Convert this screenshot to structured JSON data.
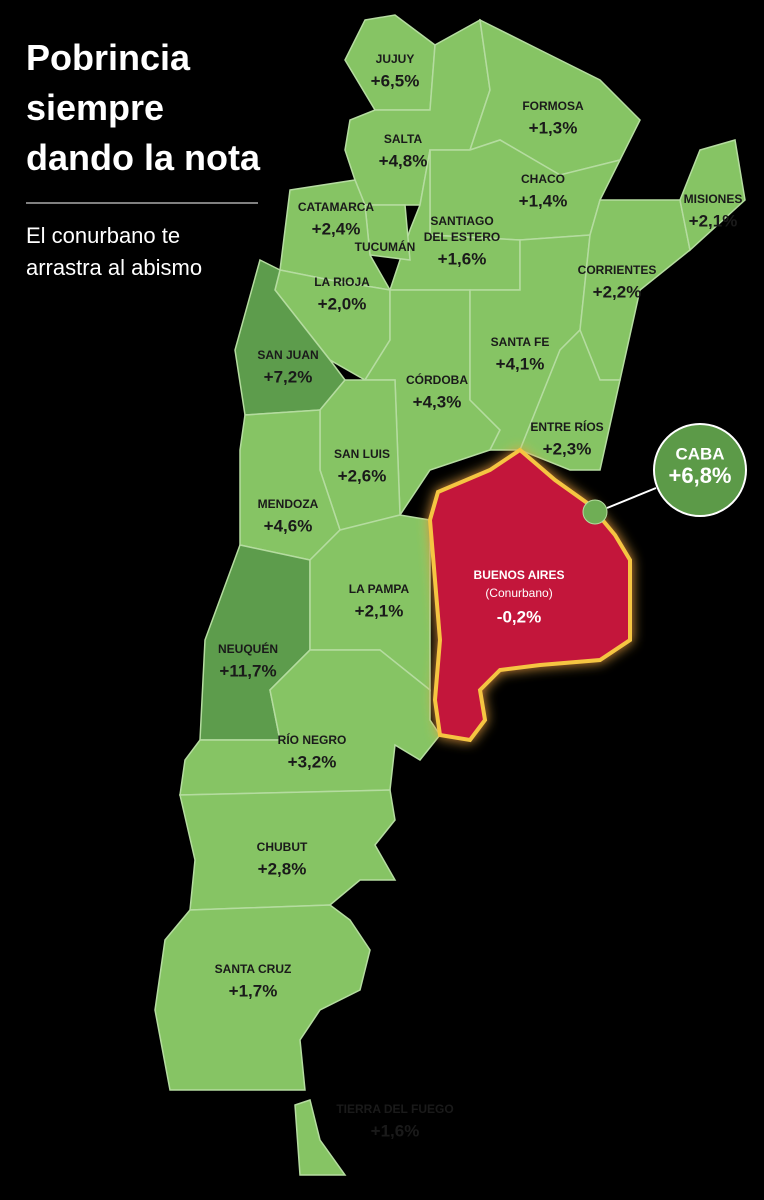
{
  "title": [
    "Pobrincia",
    "siempre",
    "dando la nota"
  ],
  "subtitle": [
    "El conurbano te",
    "arrastra al abismo"
  ],
  "provinces": [
    {
      "name": "JUJUY",
      "value": "+6,5%"
    },
    {
      "name": "SALTA",
      "value": "+4,8%"
    },
    {
      "name": "FORMOSA",
      "value": "+1,3%"
    },
    {
      "name": "CHACO",
      "value": "+1,4%"
    },
    {
      "name": "MISIONES",
      "value": "+2,1%"
    },
    {
      "name": "CORRIENTES",
      "value": "+2,2%"
    },
    {
      "name": [
        "SANTIAGO",
        "DEL ESTERO"
      ],
      "value": "+1,6%"
    },
    {
      "name": "TUCUMÁN"
    },
    {
      "name": "CATAMARCA",
      "value": "+2,4%"
    },
    {
      "name": "LA RIOJA",
      "value": "+2,0%"
    },
    {
      "name": "SAN JUAN",
      "value": "+7,2%"
    },
    {
      "name": "CÓRDOBA",
      "value": "+4,3%"
    },
    {
      "name": "SANTA FE",
      "value": "+4,1%"
    },
    {
      "name": "ENTRE RÍOS",
      "value": "+2,3%"
    },
    {
      "name": "SAN LUIS",
      "value": "+2,6%"
    },
    {
      "name": "MENDOZA",
      "value": "+4,6%"
    },
    {
      "name": "LA PAMPA",
      "value": "+2,1%"
    },
    {
      "name": "NEUQUÉN",
      "value": "+11,7%"
    },
    {
      "name": "BUENOS AIRES",
      "sub": "(Conurbano)",
      "value": "-0,2%"
    },
    {
      "name": "RÍO NEGRO",
      "value": "+3,2%"
    },
    {
      "name": "CHUBUT",
      "value": "+2,8%"
    },
    {
      "name": "SANTA CRUZ",
      "value": "+1,7%"
    },
    {
      "name": "TIERRA DEL FUEGO",
      "value": "+1,6%"
    },
    {
      "name": "CABA",
      "value": "+6,8%"
    }
  ]
}
